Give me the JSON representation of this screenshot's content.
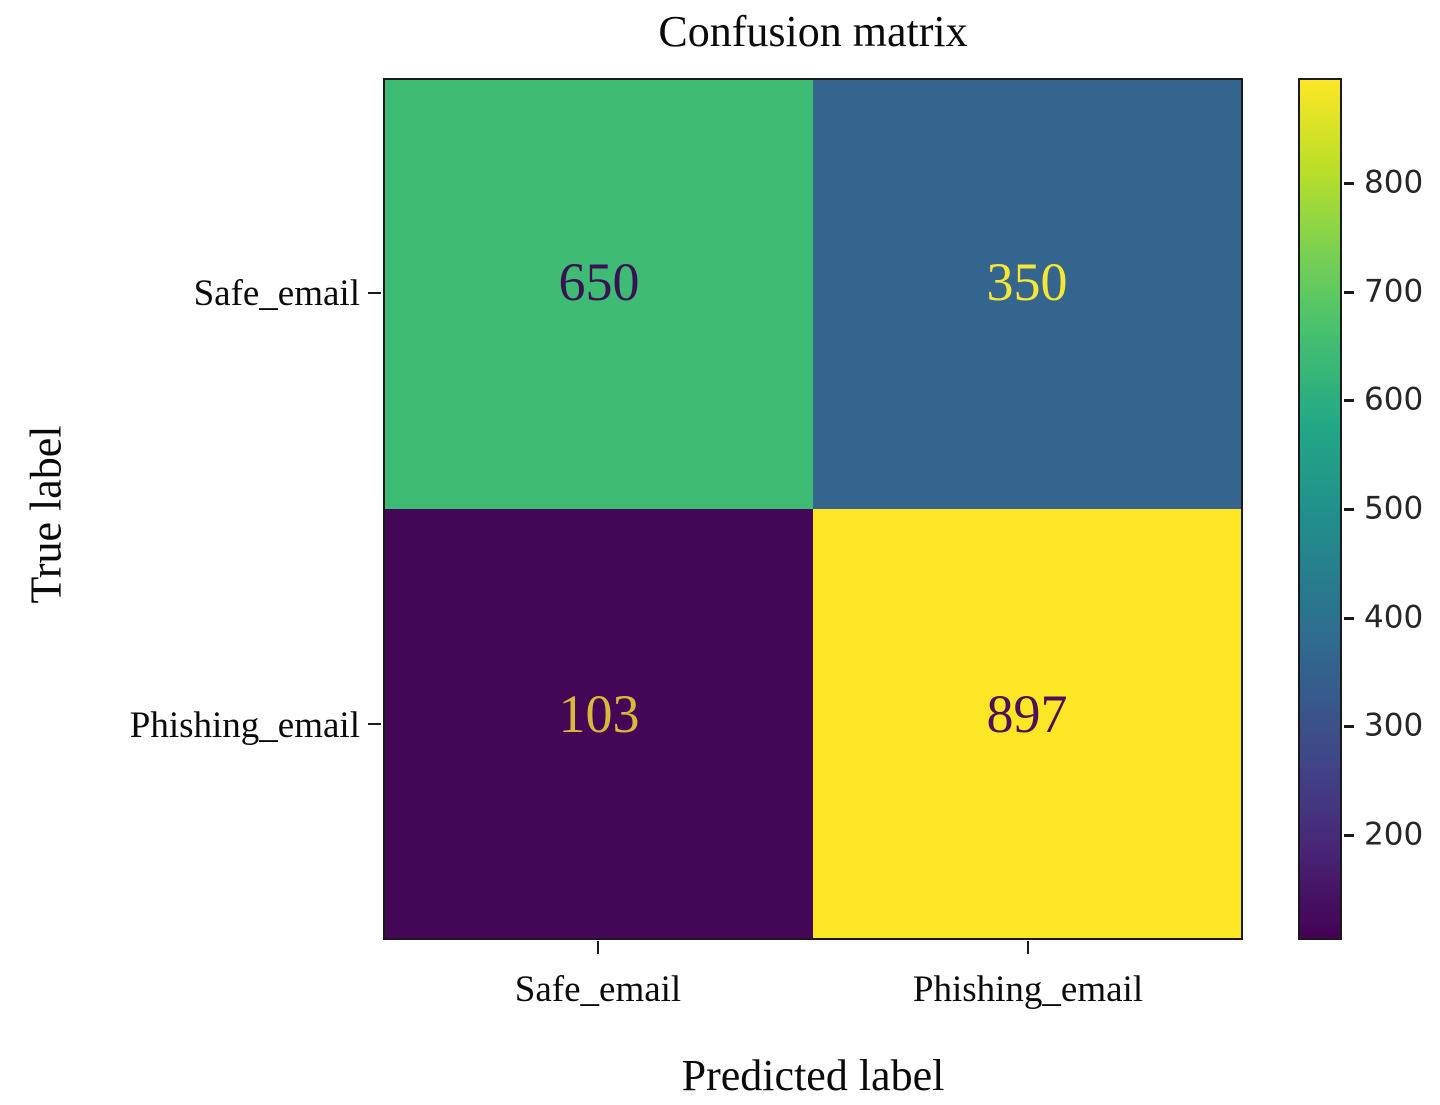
{
  "chart_data": {
    "type": "heatmap",
    "title": "Confusion matrix",
    "xlabel": "Predicted label",
    "ylabel": "True label",
    "x_categories": [
      "Safe_email",
      "Phishing_email"
    ],
    "y_categories": [
      "Safe_email",
      "Phishing_email"
    ],
    "matrix": [
      [
        650,
        350
      ],
      [
        103,
        897
      ]
    ],
    "value_range": [
      103,
      897
    ],
    "colormap": "viridis",
    "grid": false,
    "legend": "colorbar-right",
    "cells": [
      {
        "row": "Safe_email",
        "col": "Safe_email",
        "value": "650",
        "bg": "#3fbc73",
        "fg": "#3a1254"
      },
      {
        "row": "Safe_email",
        "col": "Phishing_email",
        "value": "350",
        "bg": "#33658e",
        "fg": "#f7e635"
      },
      {
        "row": "Phishing_email",
        "col": "Safe_email",
        "value": "103",
        "bg": "#440656",
        "fg": "#d8b93c"
      },
      {
        "row": "Phishing_email",
        "col": "Phishing_email",
        "value": "897",
        "bg": "#fde725",
        "fg": "#4c1158"
      }
    ],
    "colorbar": {
      "min": 103,
      "max": 897,
      "ticks": [
        800,
        700,
        600,
        500,
        400,
        300,
        200
      ],
      "gradient_stops": [
        "#fde725 0%",
        "#bddf26 10%",
        "#7ad151 20%",
        "#44bf70 30%",
        "#22a884 40%",
        "#21918c 50%",
        "#2a788e 60%",
        "#355f8d 70%",
        "#414487 80%",
        "#482475 90%",
        "#440154 100%"
      ]
    }
  }
}
